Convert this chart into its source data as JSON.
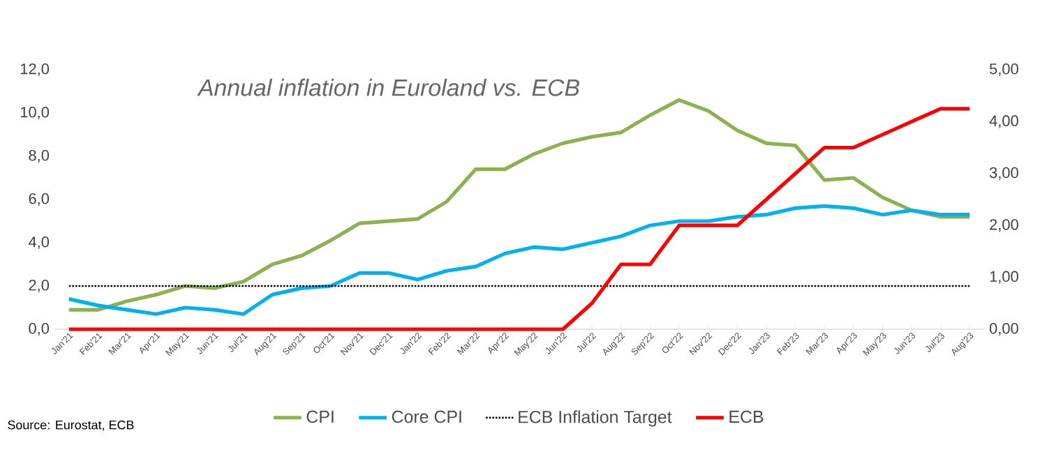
{
  "chart_data": {
    "type": "line",
    "title": "Annual inflation in Euroland vs. ECB",
    "categories": [
      "Jan'21",
      "Feb'21",
      "Mar'21",
      "Apr'21",
      "May'21",
      "Jun'21",
      "Jul'21",
      "Aug'21",
      "Sep'21",
      "Oct'21",
      "Nov'21",
      "Dec'21",
      "Jan'22",
      "Feb'22",
      "Mar'22",
      "Apr'22",
      "May'22",
      "Jun'22",
      "Jul'22",
      "Aug'22",
      "Sep'22",
      "Oct'22",
      "Nov'22",
      "Dec'22",
      "Jan'23",
      "Feb'23",
      "Mar'23",
      "Apr'23",
      "May'23",
      "Jun'23",
      "Jul'23",
      "Aug'23"
    ],
    "series": [
      {
        "name": "CPI",
        "color": "#8db050",
        "line_style": "solid",
        "values": [
          0.9,
          0.9,
          1.3,
          1.6,
          2.0,
          1.9,
          2.2,
          3.0,
          3.4,
          4.1,
          4.9,
          5.0,
          5.1,
          5.9,
          7.4,
          7.4,
          8.1,
          8.6,
          8.9,
          9.1,
          9.9,
          10.6,
          10.1,
          9.2,
          8.6,
          8.5,
          6.9,
          7.0,
          6.1,
          5.5,
          5.2,
          5.2
        ]
      },
      {
        "name": "Core CPI",
        "color": "#00b0f0",
        "line_style": "solid",
        "values": [
          1.4,
          1.1,
          0.9,
          0.7,
          1.0,
          0.9,
          0.7,
          1.6,
          1.9,
          2.0,
          2.6,
          2.6,
          2.3,
          2.7,
          2.9,
          3.5,
          3.8,
          3.7,
          4.0,
          4.3,
          4.8,
          5.0,
          5.0,
          5.2,
          5.3,
          5.6,
          5.7,
          5.6,
          5.3,
          5.5,
          5.3,
          5.3
        ]
      },
      {
        "name": "ECB Inflation Target",
        "color": "#000000",
        "line_style": "dotted",
        "values": [
          2,
          2,
          2,
          2,
          2,
          2,
          2,
          2,
          2,
          2,
          2,
          2,
          2,
          2,
          2,
          2,
          2,
          2,
          2,
          2,
          2,
          2,
          2,
          2,
          2,
          2,
          2,
          2,
          2,
          2,
          2,
          2
        ]
      },
      {
        "name": "ECB",
        "color": "#ff0000",
        "line_style": "solid",
        "axis": "y2",
        "values": [
          0,
          0,
          0,
          0,
          0,
          0,
          0,
          0,
          0,
          0,
          0,
          0,
          0,
          0,
          0,
          0,
          0,
          0,
          0.5,
          1.25,
          1.25,
          2.0,
          2.0,
          2.0,
          2.5,
          3.0,
          3.5,
          3.5,
          3.75,
          4.0,
          4.25,
          4.25
        ]
      }
    ],
    "ylim": [
      0,
      12
    ],
    "yticks": [
      {
        "value": 0,
        "label": "0,0"
      },
      {
        "value": 2,
        "label": "2,0"
      },
      {
        "value": 4,
        "label": "4,0"
      },
      {
        "value": 6,
        "label": "6,0"
      },
      {
        "value": 8,
        "label": "8,0"
      },
      {
        "value": 10,
        "label": "10,0"
      },
      {
        "value": 12,
        "label": "12,0"
      }
    ],
    "y2lim": [
      0,
      5
    ],
    "y2ticks": [
      {
        "value": 0,
        "label": "0,00"
      },
      {
        "value": 1,
        "label": "1,00"
      },
      {
        "value": 2,
        "label": "2,00"
      },
      {
        "value": 3,
        "label": "3,00"
      },
      {
        "value": 4,
        "label": "4,00"
      },
      {
        "value": 5,
        "label": "5,00"
      }
    ],
    "legend": "bottom",
    "marker": "none",
    "annotations": [
      "Source: Eurostat, ECB"
    ]
  }
}
